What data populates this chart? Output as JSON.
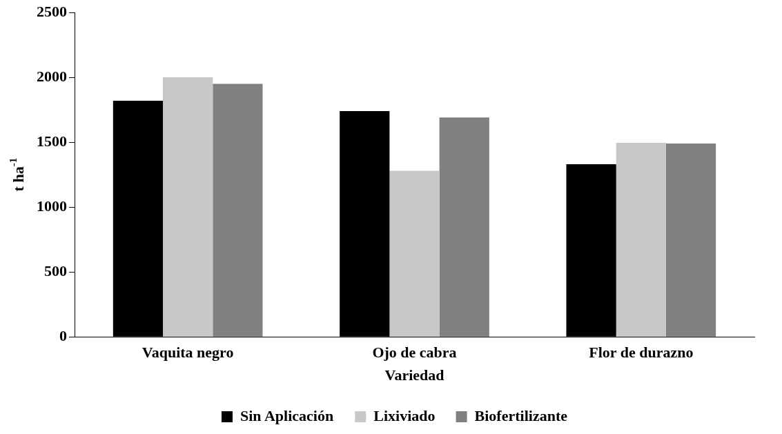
{
  "chart_data": {
    "type": "bar",
    "xlabel": "Variedad",
    "ylabel": "t ha$^{-1}$",
    "categories": [
      "Vaquita negro",
      "Ojo de cabra",
      "Flor de durazno"
    ],
    "series": [
      {
        "name": "Sin Aplicación",
        "color": "#000000",
        "values": [
          1820,
          1740,
          1330
        ]
      },
      {
        "name": "Lixiviado",
        "color": "#c8c8c8",
        "values": [
          2000,
          1280,
          1495
        ]
      },
      {
        "name": "Biofertilizante",
        "color": "#808080",
        "values": [
          1950,
          1690,
          1490
        ]
      }
    ],
    "ylim": [
      0,
      2500
    ],
    "yticks": [
      0,
      500,
      1000,
      1500,
      2000,
      2500
    ],
    "legend": "bottom"
  }
}
